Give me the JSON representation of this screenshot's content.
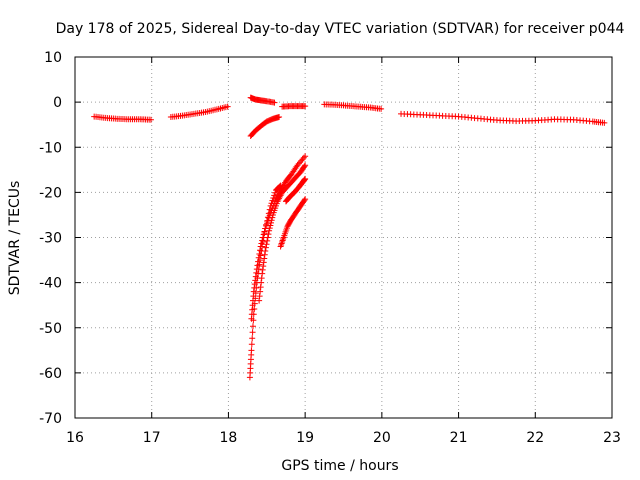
{
  "chart_data": {
    "type": "scatter",
    "title": "Day 178 of 2025, Sidereal Day-to-day VTEC variation (SDTVAR) for receiver p044",
    "xlabel": "GPS time / hours",
    "ylabel": "SDTVAR / TECUs",
    "xlim": [
      16,
      23
    ],
    "ylim": [
      -70,
      10
    ],
    "xticks": [
      16,
      17,
      18,
      19,
      20,
      21,
      22,
      23
    ],
    "yticks": [
      10,
      0,
      -10,
      -20,
      -30,
      -40,
      -50,
      -60,
      -70
    ],
    "marker": "+",
    "color": "#ff0000",
    "grid": true,
    "series": [
      {
        "name": "seg-a",
        "x": [
          16.25,
          16.4,
          16.55,
          16.7,
          16.85,
          16.99
        ],
        "y": [
          -3.2,
          -3.5,
          -3.7,
          -3.8,
          -3.8,
          -3.9
        ]
      },
      {
        "name": "seg-b",
        "x": [
          17.25,
          17.4,
          17.55,
          17.7,
          17.85,
          17.99
        ],
        "y": [
          -3.3,
          -3.0,
          -2.6,
          -2.2,
          -1.6,
          -1.0
        ]
      },
      {
        "name": "seg-c",
        "x": [
          18.29,
          18.35,
          18.42,
          18.5,
          18.6
        ],
        "y": [
          1.0,
          0.6,
          0.4,
          0.2,
          -0.1
        ]
      },
      {
        "name": "seg-d",
        "x": [
          18.29,
          18.36,
          18.43,
          18.5,
          18.58,
          18.66
        ],
        "y": [
          -7.5,
          -6.2,
          -5.2,
          -4.3,
          -3.7,
          -3.3
        ]
      },
      {
        "name": "seg-e",
        "x": [
          18.7,
          18.8,
          18.9,
          19.0
        ],
        "y": [
          -1.0,
          -0.9,
          -0.9,
          -0.9
        ]
      },
      {
        "name": "seg-f",
        "x": [
          19.25,
          19.4,
          19.55,
          19.7,
          19.85,
          19.99
        ],
        "y": [
          -0.5,
          -0.6,
          -0.8,
          -1.0,
          -1.2,
          -1.5
        ]
      },
      {
        "name": "seg-g",
        "x": [
          20.25,
          20.5,
          20.75,
          21.0,
          21.25,
          21.5,
          21.75,
          22.0,
          22.25,
          22.5,
          22.75,
          22.9
        ],
        "y": [
          -2.6,
          -2.8,
          -3.0,
          -3.2,
          -3.6,
          -4.0,
          -4.2,
          -4.1,
          -3.8,
          -3.9,
          -4.3,
          -4.6
        ]
      },
      {
        "name": "drop-1",
        "x": [
          18.28,
          18.3,
          18.33,
          18.37,
          18.42,
          18.48,
          18.55,
          18.62,
          18.68
        ],
        "y": [
          -61,
          -55,
          -47,
          -40,
          -34,
          -28,
          -23,
          -19.5,
          -18.5
        ]
      },
      {
        "name": "drop-2",
        "x": [
          18.3,
          18.33,
          18.37,
          18.42,
          18.48,
          18.55,
          18.62,
          18.68,
          18.75,
          18.82,
          18.9,
          19.0
        ],
        "y": [
          -48,
          -42,
          -37,
          -32,
          -28,
          -24.5,
          -21.5,
          -19.5,
          -17.5,
          -16,
          -14,
          -12
        ]
      },
      {
        "name": "drop-3",
        "x": [
          18.4,
          18.44,
          18.48,
          18.53,
          18.58,
          18.64,
          18.7,
          18.78,
          18.86,
          18.94,
          19.0
        ],
        "y": [
          -44,
          -38,
          -33,
          -28.5,
          -25,
          -22,
          -20,
          -18.5,
          -17,
          -15.5,
          -14
        ]
      },
      {
        "name": "drop-4",
        "x": [
          18.68,
          18.72,
          18.77,
          18.82,
          18.88,
          18.94,
          19.0
        ],
        "y": [
          -32,
          -30,
          -27.5,
          -26,
          -24.5,
          -23,
          -21.5
        ]
      },
      {
        "name": "drop-5",
        "x": [
          18.75,
          18.8,
          18.86,
          18.92,
          18.97,
          19.0
        ],
        "y": [
          -22,
          -21,
          -20,
          -18.8,
          -17.7,
          -17
        ]
      }
    ]
  }
}
